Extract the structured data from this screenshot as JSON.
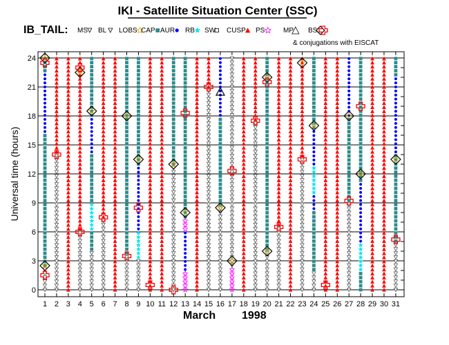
{
  "header": {
    "title": "IKI - Satellite Situation Center (SSC)",
    "subtitle": "IB_TAIL:",
    "conjugations_note": "& conjugations with EISCAT"
  },
  "chart_data": {
    "type": "scatter",
    "xlabel_month": "March",
    "xlabel_year": "1998",
    "ylabel": "Universal time (hours)",
    "xlim": [
      1,
      31
    ],
    "ylim": [
      0,
      24
    ],
    "x_ticks": [
      1,
      2,
      3,
      4,
      5,
      6,
      7,
      8,
      9,
      10,
      11,
      12,
      13,
      14,
      15,
      16,
      17,
      18,
      19,
      20,
      21,
      22,
      23,
      24,
      25,
      26,
      27,
      28,
      29,
      30,
      31
    ],
    "y_ticks": [
      0,
      3,
      6,
      9,
      12,
      15,
      18,
      21,
      24
    ],
    "grid": true,
    "legend": [
      {
        "name": "MS",
        "symbol": "triangle-down",
        "color": "#000000"
      },
      {
        "name": "BL",
        "symbol": "triangle-down-open",
        "color": "#000000"
      },
      {
        "name": "LOBS",
        "symbol": "star-open",
        "color": "#e0b000"
      },
      {
        "name": "CAP",
        "symbol": "square",
        "color": "#2e8b8b"
      },
      {
        "name": "AUR",
        "symbol": "circle",
        "color": "#0000ff"
      },
      {
        "name": "RB",
        "symbol": "star",
        "color": "#00e5ee"
      },
      {
        "name": "SW",
        "symbol": "square-open",
        "color": "#000000"
      },
      {
        "name": "CUSP",
        "symbol": "triangle-up",
        "color": "#ff0000"
      },
      {
        "name": "PS",
        "symbol": "star-open",
        "color": "#ff00ff"
      },
      {
        "name": "MP",
        "symbol": "triangle-up-open",
        "color": "#000000"
      },
      {
        "name": "BS",
        "symbol": "diamond-open",
        "color": "#000000"
      }
    ],
    "eiscat_marker_color": "#ff0000",
    "days": [
      {
        "day": 1,
        "lower": "BL",
        "lower_end": 2.5,
        "upper": "CAP",
        "aur": [
          16,
          22.5
        ],
        "diamonds": [
          2.5,
          24
        ],
        "eiscat": [
          1.5,
          23.5
        ]
      },
      {
        "day": 2,
        "lower": "BL",
        "lower_end": 14,
        "upper": "CUSP",
        "eiscat": [
          14
        ]
      },
      {
        "day": 3,
        "lower": "CUSP",
        "lower_end": 24
      },
      {
        "day": 4,
        "lower": "BL",
        "lower_end": 6,
        "upper": "CUSP",
        "diamonds": [
          22.5
        ],
        "eiscat": [
          6,
          23
        ]
      },
      {
        "day": 5,
        "lower": "BL",
        "lower_end": 4,
        "upper": "CAP",
        "aur": [
          14,
          18
        ],
        "rb": [
          6,
          9
        ],
        "diamonds": [
          18.5
        ]
      },
      {
        "day": 6,
        "lower": "BL",
        "lower_end": 7.5,
        "upper": "CUSP",
        "eiscat": [
          7.5
        ]
      },
      {
        "day": 7,
        "lower": "CUSP",
        "lower_end": 24
      },
      {
        "day": 8,
        "lower": "BL",
        "lower_end": 3.5,
        "upper": "CAP",
        "diamonds": [
          18
        ],
        "eiscat": [
          3.5
        ]
      },
      {
        "day": 9,
        "lower": "BL",
        "lower_end": 3,
        "upper": "CAP",
        "aur": [
          4,
          13
        ],
        "rb": [
          3,
          6
        ],
        "diamonds": [
          13.5
        ],
        "eiscat": [
          8.5
        ]
      },
      {
        "day": 10,
        "lower": "CUSP",
        "lower_end": 24,
        "eiscat": [
          0.5
        ]
      },
      {
        "day": 11,
        "lower": "CUSP",
        "lower_end": 24
      },
      {
        "day": 12,
        "lower": "BL",
        "lower_end": 13,
        "upper": "CAP",
        "diamonds": [
          13
        ],
        "eiscat": [
          0
        ]
      },
      {
        "day": 13,
        "lower": "PS",
        "lower_end": 7.5,
        "upper": "CAP",
        "aur": [
          2,
          6
        ],
        "diamonds": [
          8
        ],
        "eiscat": [
          18.3
        ]
      },
      {
        "day": 14,
        "lower": "CUSP",
        "lower_end": 24
      },
      {
        "day": 15,
        "lower": "BL",
        "lower_end": 21,
        "upper": "CUSP",
        "eiscat": [
          21
        ]
      },
      {
        "day": 16,
        "lower": "BL",
        "lower_end": 8.5,
        "upper": "CAP",
        "aur": [
          18,
          24
        ],
        "diamonds": [
          8.5
        ],
        "mp": [
          20.5
        ]
      },
      {
        "day": 17,
        "lower": "PS",
        "lower_end": 2.5,
        "upper": "BL",
        "diamonds": [
          3
        ],
        "eiscat": [
          12.3
        ]
      },
      {
        "day": 18,
        "lower": "CUSP",
        "lower_end": 24
      },
      {
        "day": 19,
        "lower": "BL",
        "lower_end": 17.5,
        "upper": "CUSP",
        "eiscat": [
          17.5
        ]
      },
      {
        "day": 20,
        "lower": "BL",
        "lower_end": 4,
        "upper": "CAP",
        "diamonds": [
          4,
          22
        ],
        "eiscat": [
          21.5
        ]
      },
      {
        "day": 21,
        "lower": "BL",
        "lower_end": 6.5,
        "upper": "CUSP",
        "eiscat": [
          6.5
        ]
      },
      {
        "day": 22,
        "lower": "CUSP",
        "lower_end": 24
      },
      {
        "day": 23,
        "lower": "BL",
        "lower_end": 13.5,
        "upper": "CUSP",
        "diamonds": [
          23.5
        ],
        "eiscat": [
          13.5
        ]
      },
      {
        "day": 24,
        "lower": "BL",
        "lower_end": 2,
        "upper": "CAP",
        "aur": [
          8,
          16.5
        ],
        "rb": [
          10,
          13
        ],
        "diamonds": [
          17
        ]
      },
      {
        "day": 25,
        "lower": "CUSP",
        "lower_end": 24,
        "eiscat": [
          0.5
        ]
      },
      {
        "day": 26,
        "lower": "CUSP",
        "lower_end": 24
      },
      {
        "day": 27,
        "lower": "BL",
        "lower_end": 9,
        "upper": "CAP",
        "aur": [
          18,
          24
        ],
        "diamonds": [
          18
        ],
        "eiscat": [
          9.2
        ]
      },
      {
        "day": 28,
        "lower": "CAP",
        "lower_end": 2,
        "upper": "CAP",
        "aur": [
          2,
          11
        ],
        "rb": [
          2,
          5
        ],
        "diamonds": [
          12
        ],
        "eiscat": [
          19
        ]
      },
      {
        "day": 29,
        "lower": "CUSP",
        "lower_end": 24
      },
      {
        "day": 30,
        "lower": "CUSP",
        "lower_end": 24
      },
      {
        "day": 31,
        "lower": "BL",
        "lower_end": 5,
        "upper": "CAP",
        "aur": [
          14,
          22
        ],
        "diamonds": [
          13.5
        ],
        "eiscat": [
          5.2
        ]
      }
    ]
  }
}
